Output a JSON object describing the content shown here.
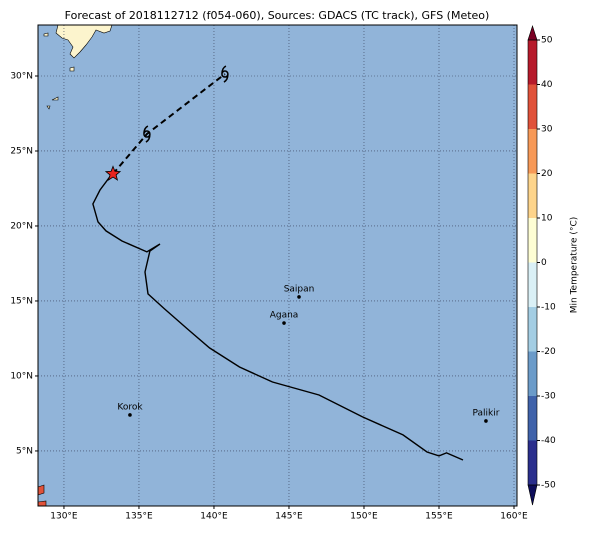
{
  "chart_data": {
    "type": "map",
    "title": "Forecast of 2018112712 (f054-060), Sources: GDACS (TC track), GFS (Meteo)",
    "xlim": [
      128.27,
      160.2
    ],
    "ylim": [
      1.33,
      33.4
    ],
    "xticks": [
      {
        "value": 130,
        "label": "130°E"
      },
      {
        "value": 135,
        "label": "135°E"
      },
      {
        "value": 140,
        "label": "140°E"
      },
      {
        "value": 145,
        "label": "145°E"
      },
      {
        "value": 150,
        "label": "150°E"
      },
      {
        "value": 155,
        "label": "155°E"
      },
      {
        "value": 160,
        "label": "160°E"
      }
    ],
    "yticks": [
      {
        "value": 5,
        "label": "5°N"
      },
      {
        "value": 10,
        "label": "10°N"
      },
      {
        "value": 15,
        "label": "15°N"
      },
      {
        "value": 20,
        "label": "20°N"
      },
      {
        "value": 25,
        "label": "25°N"
      },
      {
        "value": 30,
        "label": "30°N"
      }
    ],
    "grid": true,
    "ocean_color": "#91b4d9",
    "land_color": "#fcf4cd",
    "track": {
      "color": "#000000",
      "x": [
        156.6,
        155.5,
        155.0,
        154.2,
        152.6,
        149.9,
        147.0,
        143.9,
        141.7,
        139.7,
        138.3,
        136.7,
        135.6,
        135.4,
        135.73,
        136.4,
        135.53,
        133.87,
        132.8,
        132.27,
        131.93,
        132.4,
        133.2
      ],
      "values": [
        4.4,
        4.87,
        4.67,
        4.93,
        6.07,
        7.27,
        8.73,
        9.6,
        10.6,
        11.87,
        13.07,
        14.47,
        15.47,
        16.93,
        18.33,
        18.8,
        18.27,
        19.0,
        19.67,
        20.27,
        21.47,
        22.4,
        23.47
      ]
    },
    "current_position": {
      "lon": 133.27,
      "lat": 23.47,
      "color": "#e8231e"
    },
    "forecast": {
      "x": [
        133.27,
        135.53,
        140.73
      ],
      "values": [
        23.47,
        26.13,
        30.13
      ]
    },
    "cities": [
      {
        "name": "Saipan",
        "lon": 145.67,
        "lat": 15.27
      },
      {
        "name": "Agana",
        "lon": 144.67,
        "lat": 13.53
      },
      {
        "name": "Korok",
        "lon": 134.4,
        "lat": 7.4
      },
      {
        "name": "Palikir",
        "lon": 158.13,
        "lat": 7.0
      }
    ],
    "colorbar": {
      "label": "Min Temperature (°C)",
      "lim": [
        -50,
        50
      ],
      "ticks": [
        -50,
        -40,
        -30,
        -20,
        -10,
        0,
        10,
        20,
        30,
        40,
        50
      ],
      "colors": [
        "#2a2e8c",
        "#3f62aa",
        "#6b9bc9",
        "#a3cde3",
        "#daf0f6",
        "#fefed4",
        "#fdd48b",
        "#f79957",
        "#e0523a",
        "#b61a2b"
      ],
      "under_color": "#0d0d5a",
      "over_color": "#7a0024"
    }
  }
}
